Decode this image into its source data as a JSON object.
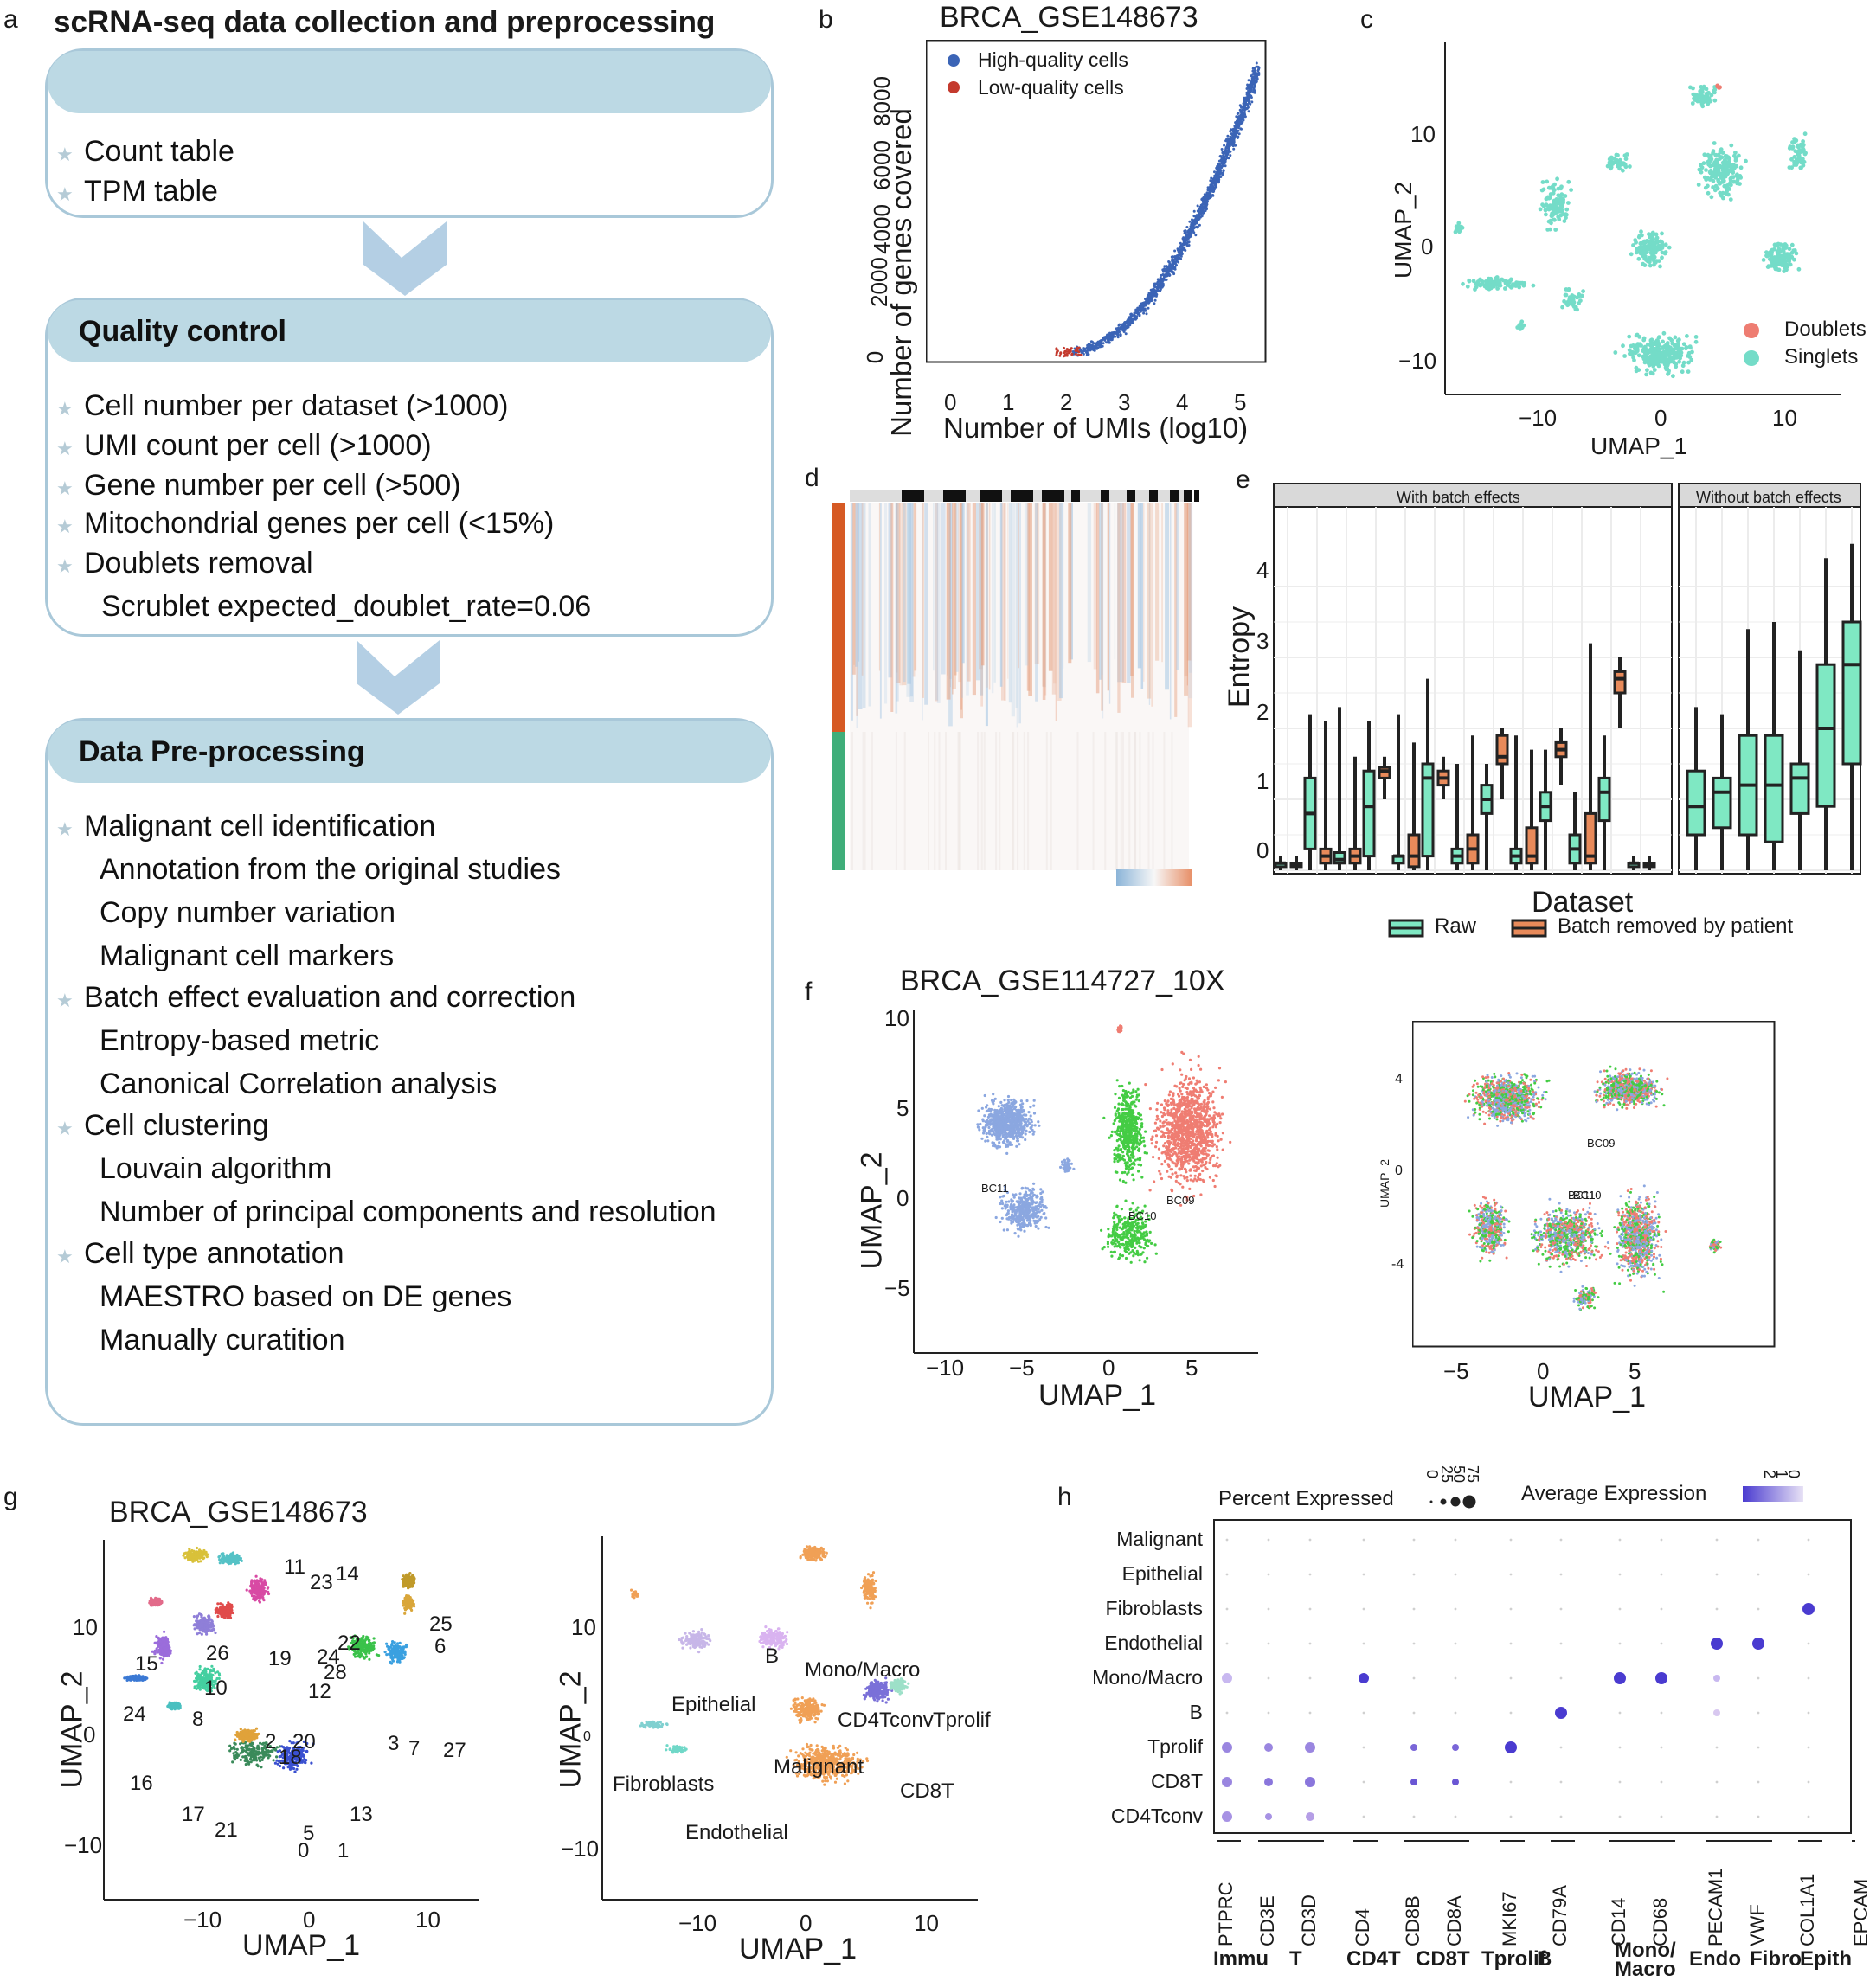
{
  "panel_a": {
    "label": "a",
    "title": "scRNA-seq data collection and preprocessing",
    "box1": {
      "items": [
        "Count table",
        "TPM table"
      ]
    },
    "box2": {
      "header": "Quality control",
      "items": [
        "Cell number per dataset (>1000)",
        "UMI count per cell (>1000)",
        "Gene number per cell (>500)",
        "Mitochondrial genes per cell (<15%)",
        "Doublets removal"
      ],
      "sub": "Scrublet  expected_doublet_rate=0.06"
    },
    "box3": {
      "header": "Data Pre-processing",
      "groups": [
        {
          "item": "Malignant cell identification",
          "subs": [
            "Annotation from the original studies",
            "Copy number variation",
            "Malignant cell markers"
          ]
        },
        {
          "item": "Batch effect evaluation and correction",
          "subs": [
            "Entropy-based metric",
            "Canonical Correlation analysis"
          ]
        },
        {
          "item": "Cell clustering",
          "subs": [
            "Louvain algorithm",
            "Number of principal components and resolution"
          ]
        },
        {
          "item": "Cell type annotation",
          "subs": [
            "MAESTRO based on DE genes",
            "Manually curatition"
          ]
        }
      ]
    }
  },
  "panel_b": {
    "label": "b",
    "title": "BRCA_GSE148673",
    "xlabel": "Number of UMIs (log10)",
    "ylabel": "Number of genes covered",
    "xticks": [
      "0",
      "1",
      "2",
      "3",
      "4",
      "5"
    ],
    "yticks": [
      "0",
      "2000",
      "4000",
      "6000",
      "8000"
    ],
    "legend": [
      "High-quality cells",
      "Low-quality cells"
    ],
    "colors": {
      "high": "#3b64b6",
      "low": "#c43a2e"
    }
  },
  "panel_c": {
    "label": "c",
    "xlabel": "UMAP_1",
    "ylabel": "UMAP_2",
    "xticks": [
      "−10",
      "0",
      "10"
    ],
    "yticks": [
      "10",
      "0",
      "−10"
    ],
    "legend": [
      "Doublets",
      "Singlets"
    ],
    "colors": {
      "doublets": "#ee7d72",
      "singlets": "#74dcc8"
    }
  },
  "panel_d": {
    "label": "d"
  },
  "panel_e": {
    "label": "e",
    "strip_left": "With batch effects",
    "strip_right": "Without batch effects",
    "ylabel": "Entropy",
    "xlabel": "Dataset",
    "yticks": [
      "0",
      "1",
      "2",
      "3",
      "4"
    ],
    "legend": [
      "Raw",
      "Batch removed by patient"
    ],
    "colors": {
      "raw": "#7fe8c3",
      "batch": "#e88a5a"
    }
  },
  "panel_f": {
    "label": "f",
    "title": "BRCA_GSE114727_10X",
    "xlabel": "UMAP_1",
    "ylabel": "UMAP_2",
    "left_xticks": [
      "−10",
      "−5",
      "0",
      "5"
    ],
    "left_yticks": [
      "10",
      "5",
      "0",
      "−5"
    ],
    "right_xticks": [
      "−5",
      "0",
      "5"
    ],
    "right_yticks": [
      "4",
      "0",
      "-4"
    ],
    "tags": [
      "BC11",
      "BC10",
      "BC09"
    ],
    "right_tags": [
      "BC09",
      "BC10"
    ],
    "right_tag_overlap": "BC11",
    "right_ylabel_small": "UMAP_2"
  },
  "panel_g": {
    "label": "g",
    "title": "BRCA_GSE148673",
    "xlabel": "UMAP_1",
    "ylabel": "UMAP_2",
    "xticks": [
      "−10",
      "0",
      "10"
    ],
    "yticks": [
      "10",
      "0",
      "−10"
    ],
    "clusters": [
      "11",
      "23",
      "14",
      "25",
      "6",
      "15",
      "26",
      "19",
      "22",
      "24",
      "28",
      "10",
      "12",
      "8",
      "24",
      "2",
      "20",
      "18",
      "3",
      "7",
      "27",
      "16",
      "17",
      "21",
      "13",
      "5",
      "0",
      "1"
    ],
    "cell_types": [
      "B",
      "Mono/Macro",
      "Epithelial",
      "CD4Tconv",
      "Tprolif",
      "Malignant",
      "CD8T",
      "Fibroblasts",
      "Endothelial"
    ]
  },
  "panel_h": {
    "label": "h",
    "legend_percent": "Percent Expressed",
    "legend_avg": "Average Expression",
    "percent_ticks": [
      "0",
      "25",
      "50",
      "75"
    ],
    "avg_ticks": [
      "2",
      "1",
      "0"
    ],
    "rows": [
      "Malignant",
      "Epithelial",
      "Fibroblasts",
      "Endothelial",
      "Mono/Macro",
      "B",
      "Tprolif",
      "CD8T",
      "CD4Tconv"
    ],
    "genes": [
      "PTPRC",
      "CD3E",
      "CD3D",
      "CD4",
      "CD8B",
      "CD8A",
      "MKI67",
      "CD79A",
      "CD14",
      "CD68",
      "PECAM1",
      "VWF",
      "COL1A1",
      "EPCAM"
    ],
    "groups": [
      "Immu",
      "T",
      "CD4T",
      "CD8T",
      "Tprolif",
      "B",
      "Mono/\nMacro",
      "Endo",
      "Fibro",
      "Epith"
    ]
  }
}
